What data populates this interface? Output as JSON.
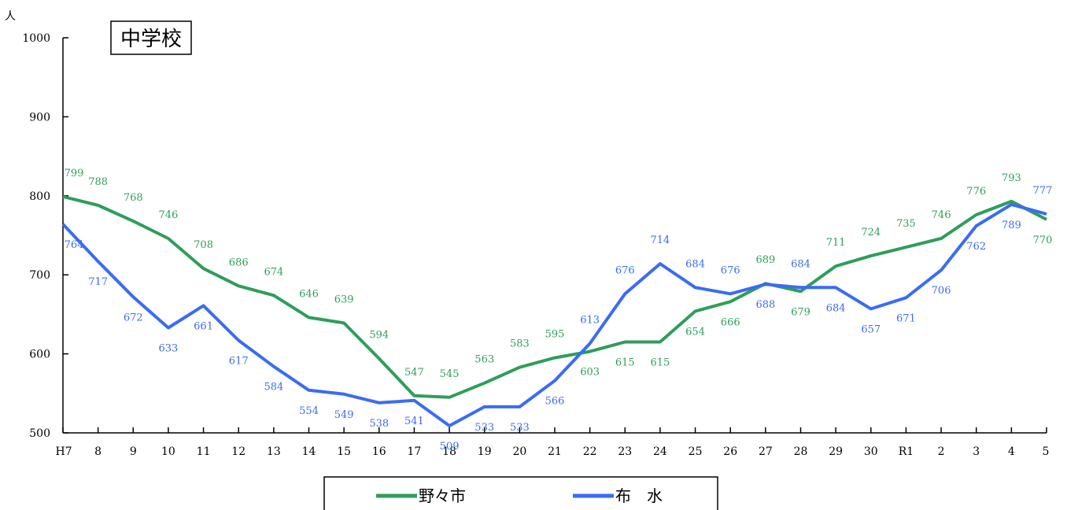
{
  "chart_data": {
    "type": "line",
    "title": "中学校",
    "ylabel": "人",
    "xlabel": "",
    "ylim": [
      500,
      1000
    ],
    "yticks": [
      500,
      600,
      700,
      800,
      900,
      1000
    ],
    "grid": false,
    "legend_position": "bottom-center",
    "categories": [
      "H7",
      "8",
      "9",
      "10",
      "11",
      "12",
      "13",
      "14",
      "15",
      "16",
      "17",
      "18",
      "19",
      "20",
      "21",
      "22",
      "23",
      "24",
      "25",
      "26",
      "27",
      "28",
      "29",
      "30",
      "R1",
      "2",
      "3",
      "4",
      "5"
    ],
    "series": [
      {
        "name": "野々市",
        "color": "#2e9e5b",
        "values": [
          799,
          788,
          768,
          746,
          708,
          686,
          674,
          646,
          639,
          594,
          547,
          545,
          563,
          583,
          595,
          603,
          615,
          615,
          654,
          666,
          689,
          679,
          711,
          724,
          735,
          746,
          776,
          793,
          770
        ]
      },
      {
        "name": "布　水",
        "color": "#3a6cf4",
        "values": [
          764,
          717,
          672,
          633,
          661,
          617,
          584,
          554,
          549,
          538,
          541,
          509,
          533,
          533,
          566,
          613,
          676,
          714,
          684,
          676,
          688,
          684,
          684,
          657,
          671,
          706,
          762,
          789,
          777
        ]
      }
    ]
  }
}
